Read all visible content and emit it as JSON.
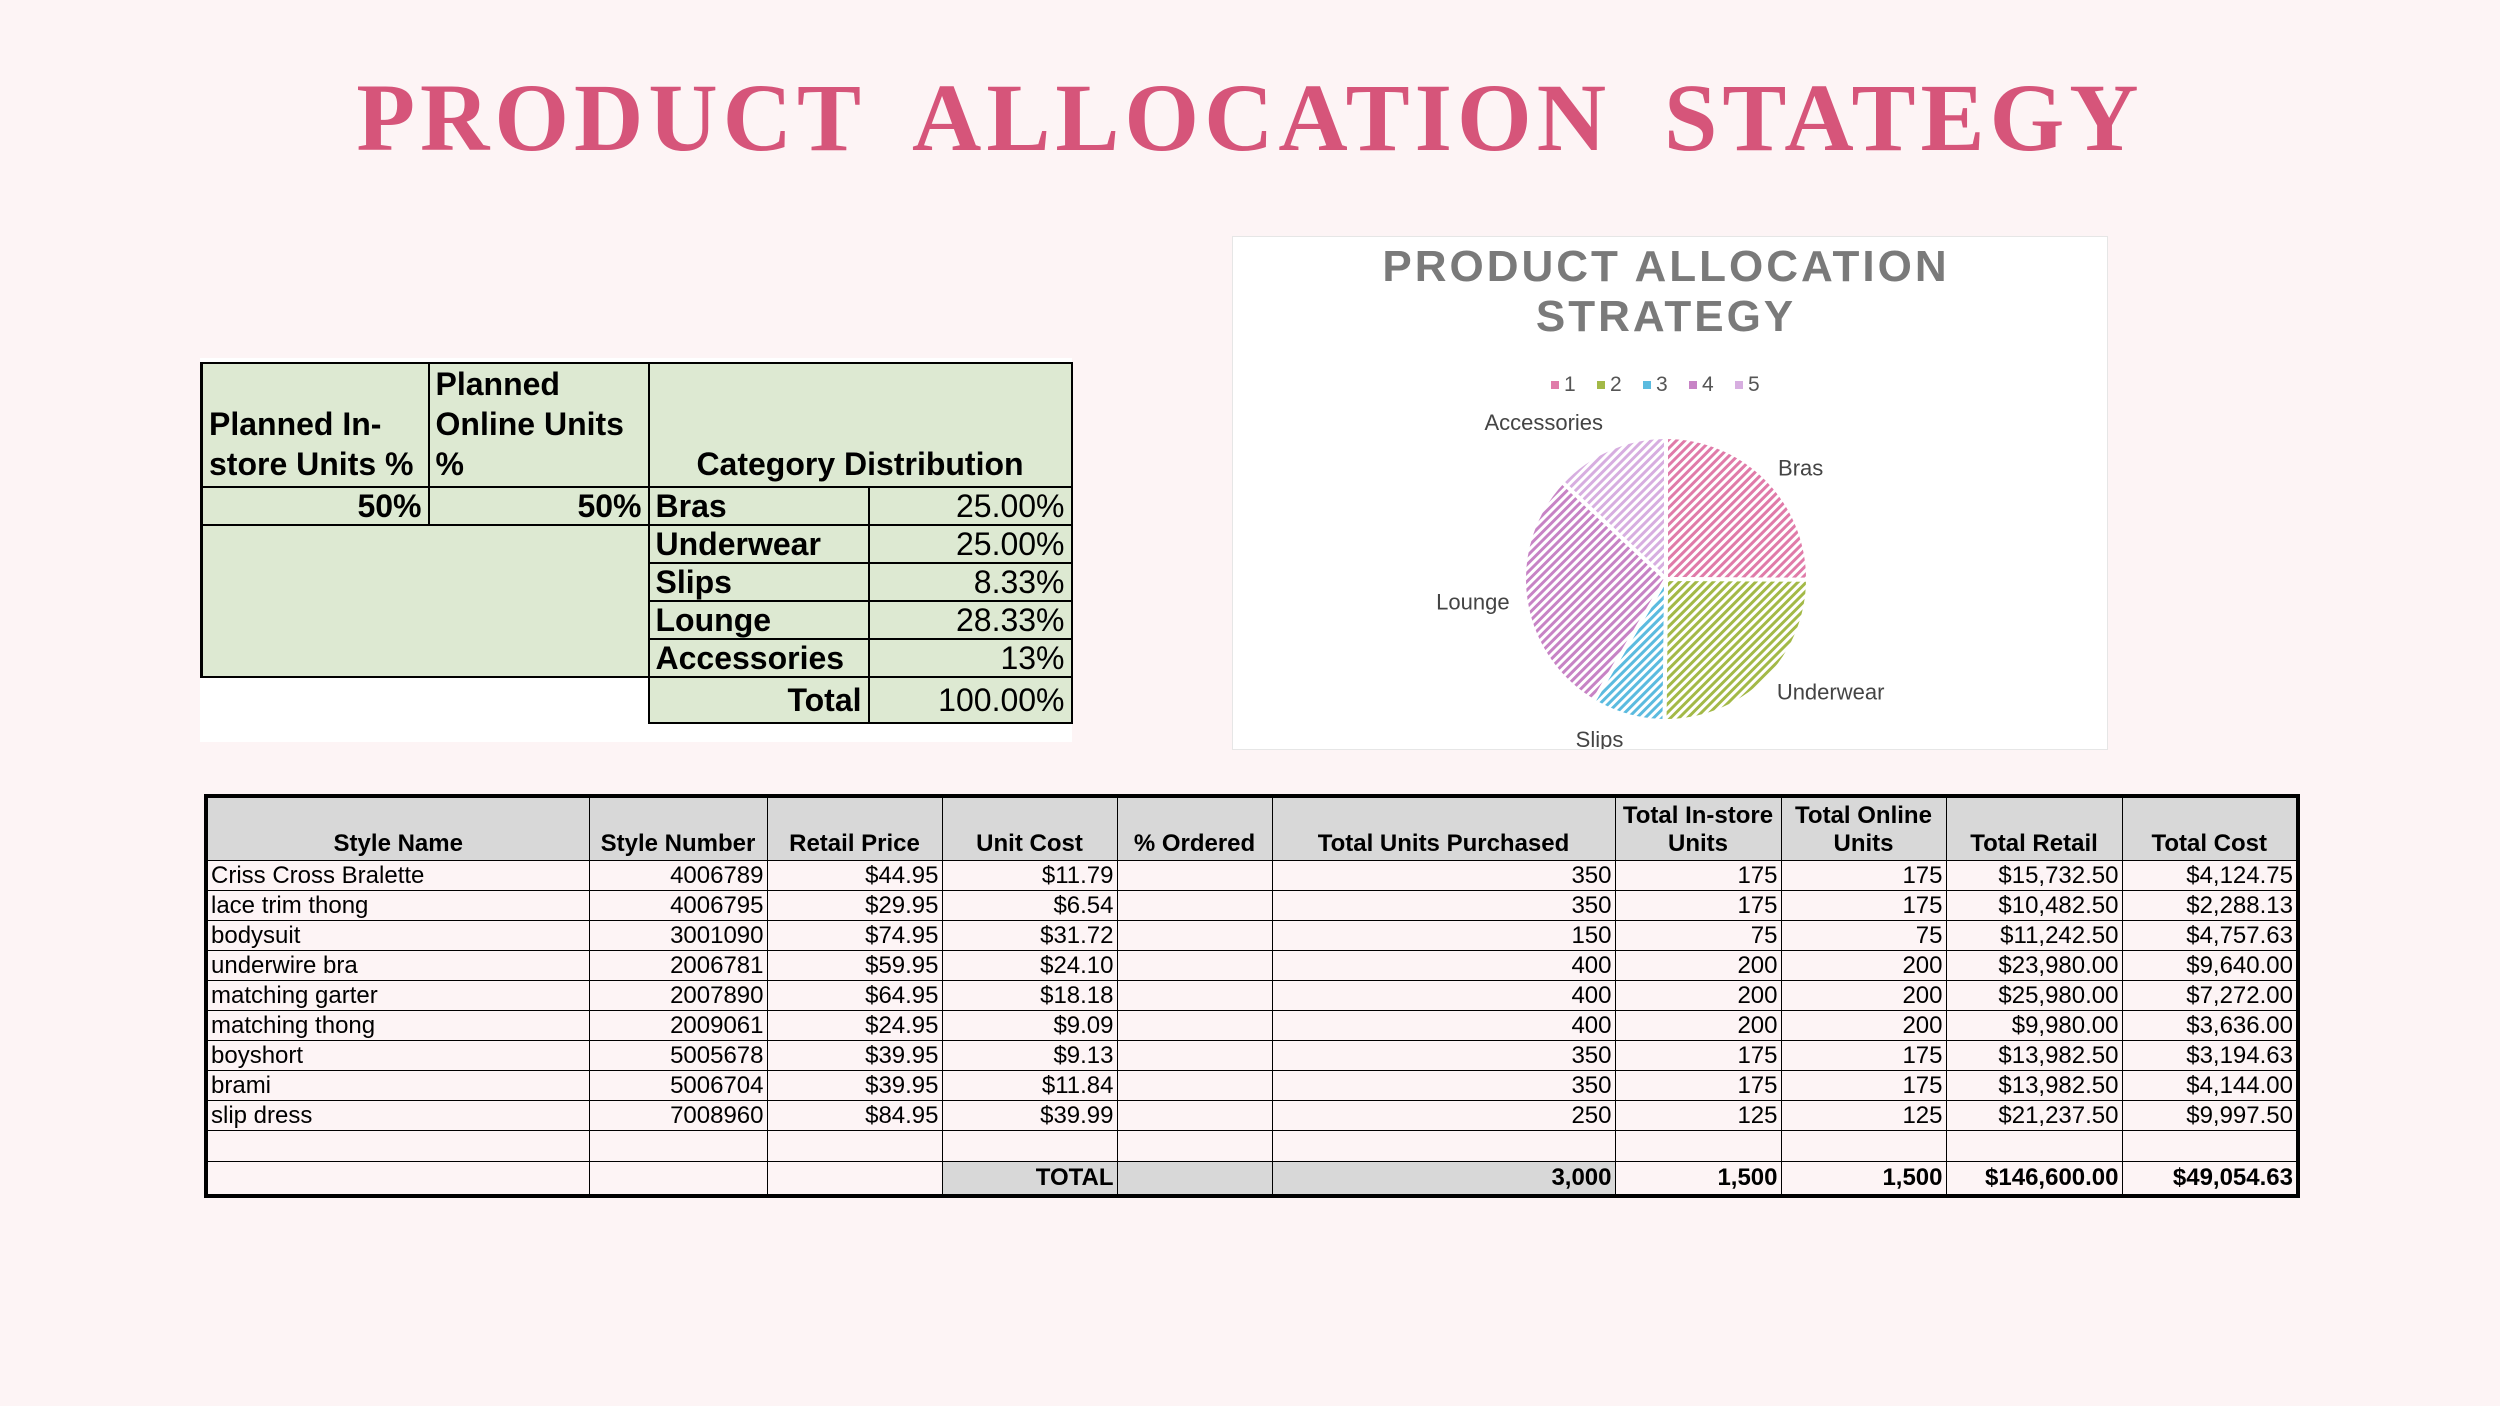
{
  "title": "PRODUCT  ALLOCATION  STATEGY",
  "category_table": {
    "headers": {
      "instore": "Planned In-store Units %",
      "online": "Planned Online Units %",
      "distribution": "Category Distribution"
    },
    "instore_value": "50%",
    "online_value": "50%",
    "rows": [
      {
        "category": "Bras",
        "percent": "25.00%"
      },
      {
        "category": "Underwear",
        "percent": "25.00%"
      },
      {
        "category": "Slips",
        "percent": "8.33%"
      },
      {
        "category": "Lounge",
        "percent": "28.33%"
      },
      {
        "category": "Accessories",
        "percent": "13%"
      }
    ],
    "total_label": "Total",
    "total_value": "100.00%"
  },
  "chart_data": {
    "type": "pie",
    "title": "PRODUCT ALLOCATION STRATEGY",
    "title_lines": [
      "PRODUCT ALLOCATION",
      "STRATEGY"
    ],
    "legend_position": "top",
    "legend": [
      "1",
      "2",
      "3",
      "4",
      "5"
    ],
    "categories": [
      "Bras",
      "Underwear",
      "Slips",
      "Lounge",
      "Accessories"
    ],
    "values": [
      25.0,
      25.0,
      8.33,
      28.33,
      13.0
    ],
    "colors": [
      "#e07ba9",
      "#a3b947",
      "#5bbbdf",
      "#c783c5",
      "#d7aee0"
    ],
    "pattern": "diagonal-hatch"
  },
  "style_table": {
    "headers": [
      "Style Name",
      "Style Number",
      "Retail Price",
      "Unit Cost",
      "% Ordered",
      "Total Units Purchased",
      "Total In-store Units",
      "Total Online Units",
      "Total Retail",
      "Total Cost"
    ],
    "rows": [
      [
        "Criss Cross Bralette",
        "4006789",
        "$44.95",
        "$11.79",
        "",
        "350",
        "175",
        "175",
        "$15,732.50",
        "$4,124.75"
      ],
      [
        "lace trim thong",
        "4006795",
        "$29.95",
        "$6.54",
        "",
        "350",
        "175",
        "175",
        "$10,482.50",
        "$2,288.13"
      ],
      [
        "bodysuit",
        "3001090",
        "$74.95",
        "$31.72",
        "",
        "150",
        "75",
        "75",
        "$11,242.50",
        "$4,757.63"
      ],
      [
        "underwire bra",
        "2006781",
        "$59.95",
        "$24.10",
        "",
        "400",
        "200",
        "200",
        "$23,980.00",
        "$9,640.00"
      ],
      [
        "matching garter",
        "2007890",
        "$64.95",
        "$18.18",
        "",
        "400",
        "200",
        "200",
        "$25,980.00",
        "$7,272.00"
      ],
      [
        "matching thong",
        "2009061",
        "$24.95",
        "$9.09",
        "",
        "400",
        "200",
        "200",
        "$9,980.00",
        "$3,636.00"
      ],
      [
        "boyshort",
        "5005678",
        "$39.95",
        "$9.13",
        "",
        "350",
        "175",
        "175",
        "$13,982.50",
        "$3,194.63"
      ],
      [
        "brami",
        "5006704",
        "$39.95",
        "$11.84",
        "",
        "350",
        "175",
        "175",
        "$13,982.50",
        "$4,144.00"
      ],
      [
        "slip dress",
        "7008960",
        "$84.95",
        "$39.99",
        "",
        "250",
        "125",
        "125",
        "$21,237.50",
        "$9,997.50"
      ]
    ],
    "total_label": "TOTAL",
    "totals": {
      "units": "3,000",
      "instore": "1,500",
      "online": "1,500",
      "retail": "$146,600.00",
      "cost": "$49,054.63"
    }
  }
}
